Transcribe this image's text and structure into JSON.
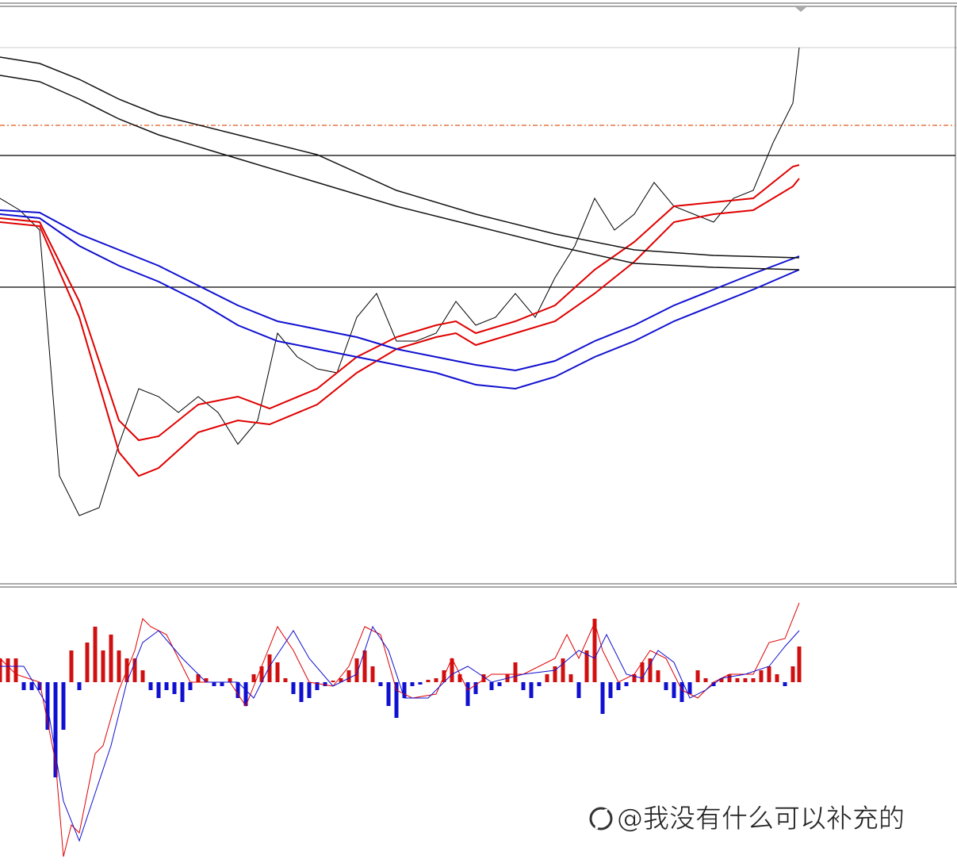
{
  "chart_data": [
    {
      "type": "line",
      "xlim": [
        0,
        1207
      ],
      "ylim": [
        0,
        675
      ],
      "hlines": [
        {
          "value": 577,
          "color": "#e05a1a",
          "dashed": true
        },
        {
          "value": 539,
          "color": "#000000"
        },
        {
          "value": 373,
          "color": "#000000"
        }
      ],
      "series": [
        {
          "kind": "line",
          "color": "#000000",
          "width": 1,
          "x": [
            0,
            25,
            50,
            75,
            100,
            125,
            150,
            175,
            200,
            225,
            250,
            275,
            300,
            325,
            350,
            375,
            400,
            425,
            450,
            475,
            500,
            525,
            550,
            575,
            600,
            625,
            650,
            675,
            700,
            725,
            750,
            775,
            800,
            825,
            850,
            875,
            900,
            925,
            950,
            975,
            1000,
            1008
          ],
          "values": [
            485,
            470,
            445,
            135,
            85,
            95,
            175,
            245,
            235,
            215,
            235,
            215,
            175,
            205,
            315,
            285,
            270,
            265,
            335,
            365,
            305,
            305,
            315,
            355,
            325,
            335,
            365,
            335,
            385,
            425,
            485,
            445,
            465,
            505,
            475,
            465,
            455,
            485,
            495,
            555,
            605,
            675
          ]
        },
        {
          "kind": "line",
          "color": "#e00000",
          "width": 2,
          "x": [
            0,
            50,
            100,
            150,
            175,
            200,
            250,
            300,
            340,
            400,
            450,
            500,
            550,
            575,
            600,
            650,
            700,
            750,
            800,
            850,
            900,
            950,
            1000,
            1008
          ],
          "values": [
            460,
            455,
            355,
            205,
            180,
            185,
            225,
            235,
            220,
            245,
            285,
            310,
            325,
            330,
            315,
            330,
            350,
            395,
            430,
            475,
            480,
            485,
            525,
            527
          ]
        },
        {
          "kind": "line",
          "color": "#e00000",
          "width": 2,
          "x": [
            0,
            50,
            100,
            150,
            175,
            200,
            250,
            300,
            340,
            400,
            450,
            500,
            550,
            575,
            600,
            650,
            700,
            750,
            800,
            850,
            900,
            950,
            1000,
            1008
          ],
          "values": [
            455,
            450,
            335,
            165,
            135,
            145,
            190,
            205,
            200,
            225,
            265,
            295,
            310,
            315,
            300,
            315,
            330,
            365,
            405,
            455,
            465,
            470,
            500,
            510
          ]
        },
        {
          "kind": "line",
          "color": "#1010d0",
          "width": 2,
          "x": [
            0,
            50,
            100,
            150,
            200,
            250,
            300,
            350,
            400,
            450,
            500,
            550,
            600,
            650,
            700,
            750,
            800,
            850,
            900,
            950,
            1008
          ],
          "values": [
            470,
            467,
            440,
            420,
            400,
            375,
            350,
            330,
            320,
            310,
            295,
            285,
            275,
            268,
            280,
            305,
            325,
            350,
            370,
            390,
            412
          ]
        },
        {
          "kind": "line",
          "color": "#1010d0",
          "width": 2,
          "x": [
            0,
            50,
            100,
            150,
            200,
            250,
            300,
            350,
            400,
            450,
            500,
            550,
            600,
            650,
            700,
            750,
            800,
            850,
            900,
            950,
            1008
          ],
          "values": [
            465,
            460,
            425,
            400,
            380,
            355,
            325,
            305,
            295,
            285,
            275,
            265,
            250,
            245,
            260,
            285,
            305,
            330,
            350,
            370,
            395
          ]
        },
        {
          "kind": "line",
          "color": "#111111",
          "width": 1.5,
          "x": [
            0,
            50,
            100,
            150,
            200,
            300,
            400,
            500,
            600,
            700,
            800,
            900,
            1008
          ],
          "values": [
            663,
            655,
            635,
            610,
            590,
            565,
            540,
            495,
            465,
            440,
            420,
            413,
            410
          ]
        },
        {
          "kind": "line",
          "color": "#111111",
          "width": 1.5,
          "x": [
            0,
            50,
            100,
            150,
            200,
            300,
            400,
            500,
            600,
            700,
            800,
            900,
            1008
          ],
          "values": [
            640,
            632,
            610,
            585,
            565,
            535,
            505,
            475,
            450,
            425,
            403,
            398,
            395
          ]
        }
      ]
    },
    {
      "type": "line",
      "xlim": [
        0,
        1207
      ],
      "ylim": [
        -233,
        120
      ],
      "series": [
        {
          "kind": "bar",
          "up_color": "#d01010",
          "down_color": "#1010d0",
          "x": [
            0,
            10,
            20,
            30,
            40,
            50,
            60,
            70,
            80,
            90,
            100,
            110,
            120,
            130,
            140,
            150,
            160,
            170,
            180,
            190,
            200,
            210,
            220,
            230,
            240,
            250,
            260,
            270,
            280,
            290,
            300,
            310,
            320,
            330,
            340,
            350,
            360,
            370,
            380,
            390,
            400,
            410,
            420,
            430,
            440,
            450,
            460,
            470,
            480,
            490,
            500,
            510,
            520,
            530,
            540,
            550,
            560,
            570,
            580,
            590,
            600,
            610,
            620,
            630,
            640,
            650,
            660,
            670,
            680,
            690,
            700,
            710,
            720,
            730,
            740,
            750,
            760,
            770,
            780,
            790,
            800,
            810,
            820,
            830,
            840,
            850,
            860,
            870,
            880,
            890,
            900,
            910,
            920,
            930,
            940,
            950,
            960,
            970,
            980,
            990,
            1000,
            1008
          ],
          "values": [
            30,
            30,
            30,
            -10,
            -10,
            -10,
            -60,
            -120,
            -60,
            40,
            -10,
            50,
            70,
            40,
            60,
            40,
            30,
            30,
            15,
            -10,
            -20,
            -10,
            -15,
            -25,
            -10,
            10,
            5,
            -5,
            -5,
            5,
            -20,
            -30,
            10,
            20,
            35,
            25,
            5,
            -15,
            -25,
            -20,
            -10,
            -5,
            2,
            5,
            15,
            30,
            40,
            20,
            -5,
            -30,
            -45,
            -20,
            -5,
            -3,
            3,
            5,
            15,
            30,
            10,
            -30,
            -15,
            10,
            -10,
            -5,
            10,
            25,
            -10,
            -20,
            -5,
            10,
            20,
            30,
            10,
            -20,
            40,
            80,
            -40,
            -20,
            -10,
            -5,
            10,
            25,
            30,
            15,
            -10,
            -20,
            -25,
            -15,
            15,
            5,
            -5,
            5,
            10,
            5,
            5,
            5,
            15,
            20,
            10,
            -5,
            20,
            45
          ]
        },
        {
          "kind": "line",
          "color": "#e00000",
          "width": 1,
          "x": [
            0,
            20,
            50,
            70,
            80,
            90,
            100,
            110,
            120,
            130,
            150,
            170,
            180,
            190,
            210,
            240,
            260,
            290,
            310,
            330,
            350,
            370,
            390,
            420,
            440,
            460,
            480,
            500,
            520,
            550,
            570,
            590,
            620,
            660,
            700,
            715,
            730,
            750,
            760,
            780,
            800,
            820,
            840,
            860,
            880,
            900,
            920,
            950,
            970,
            990,
            1008
          ],
          "values": [
            30,
            10,
            0,
            -100,
            -220,
            -180,
            -190,
            -140,
            -90,
            -80,
            -10,
            40,
            80,
            70,
            60,
            0,
            0,
            0,
            -30,
            20,
            70,
            40,
            0,
            -5,
            20,
            70,
            60,
            -10,
            -20,
            -15,
            30,
            -10,
            10,
            10,
            30,
            60,
            30,
            75,
            40,
            0,
            10,
            40,
            30,
            -10,
            -20,
            0,
            10,
            10,
            50,
            55,
            100
          ]
        },
        {
          "kind": "line",
          "color": "#1010d0",
          "width": 1,
          "x": [
            0,
            30,
            60,
            80,
            100,
            120,
            140,
            160,
            180,
            200,
            230,
            260,
            300,
            320,
            340,
            370,
            390,
            420,
            450,
            470,
            490,
            510,
            540,
            570,
            590,
            620,
            660,
            700,
            730,
            750,
            765,
            790,
            810,
            830,
            850,
            870,
            890,
            910,
            940,
            970,
            990,
            1008
          ],
          "values": [
            20,
            20,
            -30,
            -150,
            -200,
            -140,
            -80,
            0,
            50,
            65,
            30,
            0,
            0,
            -20,
            20,
            65,
            30,
            -5,
            10,
            70,
            40,
            -20,
            -20,
            10,
            20,
            0,
            10,
            15,
            40,
            30,
            60,
            10,
            5,
            40,
            25,
            -20,
            -10,
            5,
            10,
            20,
            45,
            65
          ]
        }
      ]
    }
  ],
  "watermark": "@我没有什么可以补充的"
}
